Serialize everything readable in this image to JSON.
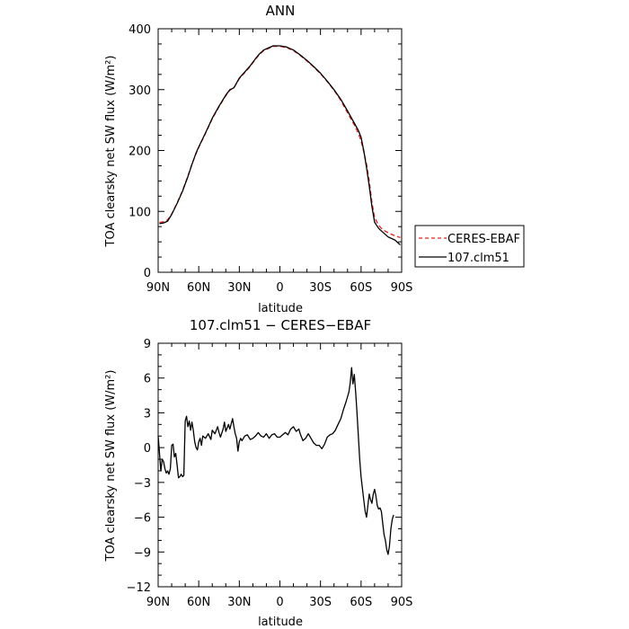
{
  "chart_data": [
    {
      "type": "line",
      "title": "ANN",
      "xlabel": "latitude",
      "ylabel": "TOA clearsky net SW flux (W/m²)",
      "xlim": [
        90,
        -90
      ],
      "ylim": [
        0,
        400
      ],
      "x_ticks": [
        {
          "value": 90,
          "label": "90N"
        },
        {
          "value": 60,
          "label": "60N"
        },
        {
          "value": 30,
          "label": "30N"
        },
        {
          "value": 0,
          "label": "0"
        },
        {
          "value": -30,
          "label": "30S"
        },
        {
          "value": -60,
          "label": "60S"
        },
        {
          "value": -90,
          "label": "90S"
        }
      ],
      "y_ticks": [
        0,
        100,
        200,
        300,
        400
      ],
      "legend": {
        "placement": "outside-right"
      },
      "series": [
        {
          "name": "CERES-EBAF",
          "color": "#e8201c",
          "dash": "dashed",
          "points": [
            [
              89,
              82
            ],
            [
              86,
              83
            ],
            [
              83,
              86
            ],
            [
              80,
              96
            ],
            [
              76,
              114
            ],
            [
              72,
              134
            ],
            [
              68,
              158
            ],
            [
              65,
              178
            ],
            [
              62,
              195
            ],
            [
              60,
              205
            ],
            [
              55,
              228
            ],
            [
              50,
              252
            ],
            [
              45,
              272
            ],
            [
              40,
              290
            ],
            [
              37,
              299
            ],
            [
              34,
              303
            ],
            [
              30,
              318
            ],
            [
              26,
              328
            ],
            [
              22,
              338
            ],
            [
              18,
              350
            ],
            [
              15,
              358
            ],
            [
              12,
              364
            ],
            [
              8,
              368
            ],
            [
              5,
              371
            ],
            [
              0,
              371
            ],
            [
              -5,
              369
            ],
            [
              -10,
              364
            ],
            [
              -15,
              356
            ],
            [
              -20,
              347
            ],
            [
              -25,
              337
            ],
            [
              -30,
              326
            ],
            [
              -35,
              313
            ],
            [
              -40,
              299
            ],
            [
              -45,
              282
            ],
            [
              -50,
              262
            ],
            [
              -55,
              242
            ],
            [
              -58,
              228
            ],
            [
              -60,
              216
            ],
            [
              -62,
              198
            ],
            [
              -64,
              178
            ],
            [
              -66,
              150
            ],
            [
              -68,
              115
            ],
            [
              -70,
              90
            ],
            [
              -73,
              77
            ],
            [
              -76,
              70
            ],
            [
              -80,
              65
            ],
            [
              -85,
              60
            ],
            [
              -89,
              57
            ]
          ]
        },
        {
          "name": "107.clm51",
          "color": "#000000",
          "dash": "solid",
          "points": [
            [
              89,
              80
            ],
            [
              86,
              81
            ],
            [
              83,
              84
            ],
            [
              80,
              95
            ],
            [
              76,
              113
            ],
            [
              72,
              133
            ],
            [
              68,
              157
            ],
            [
              65,
              177
            ],
            [
              62,
              196
            ],
            [
              60,
              206
            ],
            [
              55,
              229
            ],
            [
              50,
              253
            ],
            [
              45,
              273
            ],
            [
              40,
              291
            ],
            [
              37,
              300
            ],
            [
              34,
              303
            ],
            [
              30,
              319
            ],
            [
              26,
              329
            ],
            [
              22,
              339
            ],
            [
              18,
              351
            ],
            [
              15,
              359
            ],
            [
              12,
              365
            ],
            [
              8,
              369
            ],
            [
              5,
              372
            ],
            [
              0,
              372
            ],
            [
              -5,
              370
            ],
            [
              -10,
              365
            ],
            [
              -15,
              357
            ],
            [
              -20,
              348
            ],
            [
              -25,
              338
            ],
            [
              -30,
              327
            ],
            [
              -35,
              314
            ],
            [
              -40,
              300
            ],
            [
              -45,
              284
            ],
            [
              -50,
              265
            ],
            [
              -55,
              245
            ],
            [
              -58,
              233
            ],
            [
              -60,
              222
            ],
            [
              -62,
              200
            ],
            [
              -64,
              172
            ],
            [
              -66,
              142
            ],
            [
              -68,
              108
            ],
            [
              -70,
              82
            ],
            [
              -73,
              72
            ],
            [
              -76,
              66
            ],
            [
              -80,
              58
            ],
            [
              -85,
              53
            ],
            [
              -89,
              45
            ]
          ]
        }
      ]
    },
    {
      "type": "line",
      "title": "107.clm51 − CERES−EBAF",
      "xlabel": "latitude",
      "ylabel": "TOA clearsky net SW flux (W/m²)",
      "xlim": [
        90,
        -90
      ],
      "ylim": [
        -12,
        9
      ],
      "x_ticks": [
        {
          "value": 90,
          "label": "90N"
        },
        {
          "value": 60,
          "label": "60N"
        },
        {
          "value": 30,
          "label": "30N"
        },
        {
          "value": 0,
          "label": "0"
        },
        {
          "value": -30,
          "label": "30S"
        },
        {
          "value": -60,
          "label": "60S"
        },
        {
          "value": -90,
          "label": "90S"
        }
      ],
      "y_ticks": [
        -12,
        -9,
        -6,
        -3,
        0,
        3,
        6,
        9
      ],
      "series": [
        {
          "color": "#000000",
          "dash": "solid",
          "points": [
            [
              90,
              1.0
            ],
            [
              89,
              -0.5
            ],
            [
              88,
              -2.0
            ],
            [
              87,
              -1.0
            ],
            [
              86,
              -1.2
            ],
            [
              85,
              -1.8
            ],
            [
              84,
              -2.2
            ],
            [
              83,
              -2.0
            ],
            [
              82,
              -2.3
            ],
            [
              81,
              -1.8
            ],
            [
              80,
              0.2
            ],
            [
              79,
              0.3
            ],
            [
              78,
              -0.8
            ],
            [
              77,
              -0.5
            ],
            [
              76,
              -1.5
            ],
            [
              75,
              -2.6
            ],
            [
              74,
              -2.5
            ],
            [
              73,
              -2.3
            ],
            [
              72,
              -2.5
            ],
            [
              71,
              -2.4
            ],
            [
              70,
              2.3
            ],
            [
              69,
              2.7
            ],
            [
              68,
              1.8
            ],
            [
              67,
              2.3
            ],
            [
              66,
              1.5
            ],
            [
              65,
              2.2
            ],
            [
              64,
              1.5
            ],
            [
              63,
              0.5
            ],
            [
              62,
              0.0
            ],
            [
              61,
              -0.2
            ],
            [
              60,
              0.5
            ],
            [
              59,
              0.8
            ],
            [
              58,
              0.2
            ],
            [
              57,
              1.0
            ],
            [
              55,
              0.8
            ],
            [
              53,
              1.2
            ],
            [
              51,
              0.7
            ],
            [
              50,
              1.5
            ],
            [
              48,
              1.2
            ],
            [
              46,
              1.8
            ],
            [
              45,
              1.3
            ],
            [
              44,
              0.9
            ],
            [
              42,
              1.6
            ],
            [
              41,
              2.2
            ],
            [
              40,
              1.4
            ],
            [
              38,
              2.0
            ],
            [
              37,
              1.6
            ],
            [
              35,
              2.5
            ],
            [
              34,
              1.8
            ],
            [
              33,
              1.2
            ],
            [
              32,
              0.8
            ],
            [
              31,
              -0.3
            ],
            [
              30,
              0.5
            ],
            [
              29,
              0.8
            ],
            [
              28,
              0.6
            ],
            [
              26,
              1.0
            ],
            [
              24,
              1.1
            ],
            [
              22,
              0.7
            ],
            [
              20,
              0.8
            ],
            [
              18,
              1.0
            ],
            [
              16,
              1.3
            ],
            [
              14,
              1.0
            ],
            [
              12,
              0.9
            ],
            [
              10,
              1.2
            ],
            [
              8,
              0.8
            ],
            [
              6,
              1.1
            ],
            [
              4,
              1.2
            ],
            [
              2,
              0.9
            ],
            [
              0,
              0.9
            ],
            [
              -2,
              1.1
            ],
            [
              -4,
              1.3
            ],
            [
              -6,
              1.1
            ],
            [
              -8,
              1.6
            ],
            [
              -10,
              1.8
            ],
            [
              -12,
              1.4
            ],
            [
              -14,
              1.6
            ],
            [
              -15,
              1.2
            ],
            [
              -17,
              0.6
            ],
            [
              -19,
              0.8
            ],
            [
              -21,
              1.2
            ],
            [
              -23,
              0.8
            ],
            [
              -25,
              0.4
            ],
            [
              -27,
              0.2
            ],
            [
              -29,
              0.2
            ],
            [
              -31,
              -0.1
            ],
            [
              -33,
              0.3
            ],
            [
              -35,
              0.9
            ],
            [
              -37,
              1.1
            ],
            [
              -39,
              1.2
            ],
            [
              -41,
              1.5
            ],
            [
              -43,
              2.0
            ],
            [
              -45,
              2.5
            ],
            [
              -47,
              3.3
            ],
            [
              -49,
              4.0
            ],
            [
              -51,
              4.8
            ],
            [
              -52,
              5.6
            ],
            [
              -53,
              6.9
            ],
            [
              -54,
              5.5
            ],
            [
              -55,
              6.3
            ],
            [
              -56,
              4.8
            ],
            [
              -57,
              3.0
            ],
            [
              -58,
              1.0
            ],
            [
              -59,
              -1.0
            ],
            [
              -60,
              -2.5
            ],
            [
              -61,
              -3.5
            ],
            [
              -62,
              -4.5
            ],
            [
              -63,
              -5.5
            ],
            [
              -64,
              -6.0
            ],
            [
              -65,
              -5.0
            ],
            [
              -66,
              -4.0
            ],
            [
              -67,
              -4.5
            ],
            [
              -68,
              -4.8
            ],
            [
              -69,
              -4.0
            ],
            [
              -70,
              -3.6
            ],
            [
              -71,
              -4.2
            ],
            [
              -72,
              -5.0
            ],
            [
              -73,
              -5.3
            ],
            [
              -74,
              -5.2
            ],
            [
              -75,
              -5.5
            ],
            [
              -76,
              -6.5
            ],
            [
              -77,
              -7.5
            ],
            [
              -78,
              -8.0
            ],
            [
              -79,
              -8.8
            ],
            [
              -80,
              -9.2
            ],
            [
              -81,
              -8.5
            ],
            [
              -82,
              -7.0
            ],
            [
              -83,
              -6.2
            ],
            [
              -84,
              -5.8
            ]
          ]
        }
      ]
    }
  ]
}
